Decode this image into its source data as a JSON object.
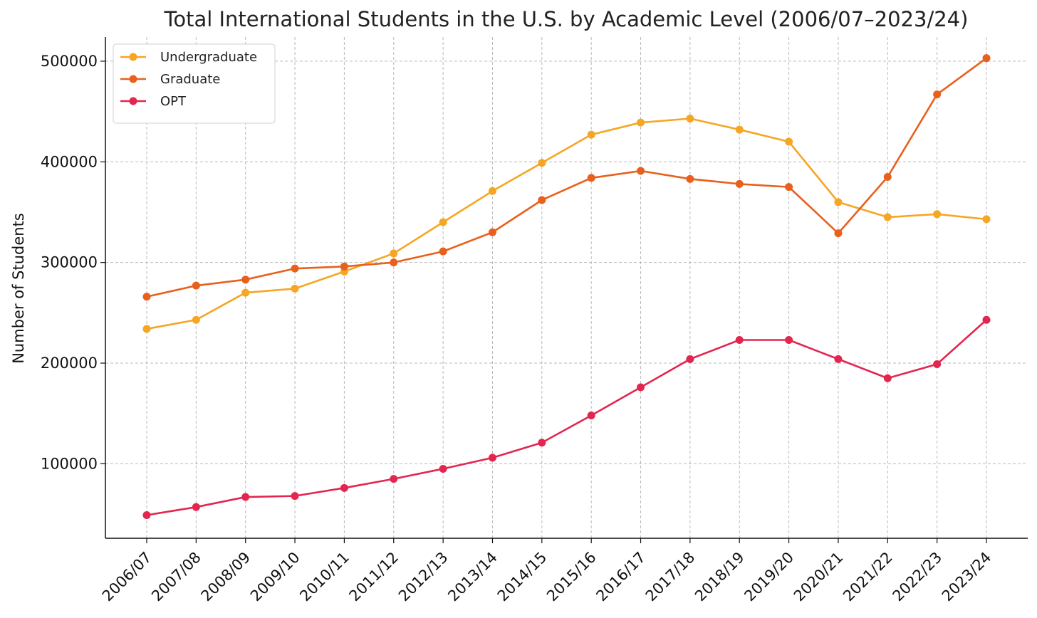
{
  "chart_data": {
    "type": "line",
    "title": "Total International Students in the U.S. by Academic Level (2006/07–2023/24)",
    "xlabel": "",
    "ylabel": "Number of Students",
    "ylim": [
      26000,
      524000
    ],
    "yticks": [
      100000,
      200000,
      300000,
      400000,
      500000
    ],
    "grid": true,
    "legend_position": "top-left",
    "categories": [
      "2006/07",
      "2007/08",
      "2008/09",
      "2009/10",
      "2010/11",
      "2011/12",
      "2012/13",
      "2013/14",
      "2014/15",
      "2015/16",
      "2016/17",
      "2017/18",
      "2018/19",
      "2019/20",
      "2020/21",
      "2021/22",
      "2022/23",
      "2023/24"
    ],
    "series": [
      {
        "name": "Undergraduate",
        "color": "#F5A623",
        "values": [
          234000,
          243000,
          270000,
          274000,
          291000,
          309000,
          340000,
          371000,
          399000,
          427000,
          439000,
          443000,
          432000,
          420000,
          360000,
          345000,
          348000,
          343000
        ]
      },
      {
        "name": "Graduate",
        "color": "#E8601C",
        "values": [
          266000,
          277000,
          283000,
          294000,
          296000,
          300000,
          311000,
          330000,
          362000,
          384000,
          391000,
          383000,
          378000,
          375000,
          329000,
          385000,
          467000,
          503000
        ]
      },
      {
        "name": "OPT",
        "color": "#E3264F",
        "values": [
          49000,
          57000,
          67000,
          68000,
          76000,
          85000,
          95000,
          106000,
          121000,
          148000,
          176000,
          204000,
          223000,
          223000,
          204000,
          185000,
          199000,
          243000
        ]
      }
    ]
  }
}
